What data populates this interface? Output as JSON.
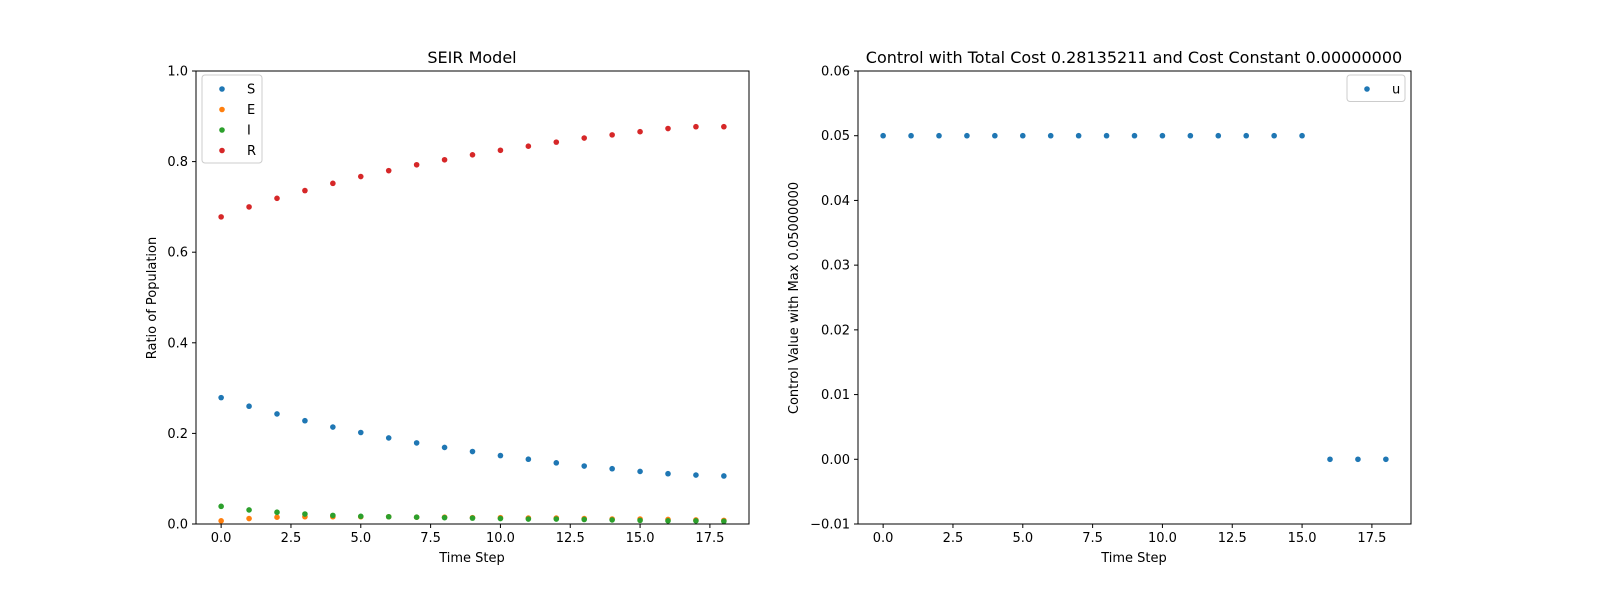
{
  "chart_data": [
    {
      "type": "scatter",
      "title": "SEIR Model",
      "xlabel": "Time Step",
      "ylabel": "Ratio of Population",
      "xlim": [
        -0.9,
        18.9
      ],
      "ylim": [
        0.0,
        1.0
      ],
      "xticks": [
        0.0,
        2.5,
        5.0,
        7.5,
        10.0,
        12.5,
        15.0,
        17.5
      ],
      "xtick_labels": [
        "0.0",
        "2.5",
        "5.0",
        "7.5",
        "10.0",
        "12.5",
        "15.0",
        "17.5"
      ],
      "yticks": [
        0.0,
        0.2,
        0.4,
        0.6,
        0.8,
        1.0
      ],
      "ytick_labels": [
        "0.0",
        "0.2",
        "0.4",
        "0.6",
        "0.8",
        "1.0"
      ],
      "grid": false,
      "legend": "top-left",
      "x": [
        0,
        1,
        2,
        3,
        4,
        5,
        6,
        7,
        8,
        9,
        10,
        11,
        12,
        13,
        14,
        15,
        16,
        17,
        18
      ],
      "series": [
        {
          "name": "S",
          "color": "#1f77b4",
          "values": [
            0.279,
            0.26,
            0.243,
            0.228,
            0.214,
            0.202,
            0.19,
            0.179,
            0.169,
            0.16,
            0.151,
            0.143,
            0.135,
            0.128,
            0.122,
            0.116,
            0.111,
            0.108,
            0.106
          ]
        },
        {
          "name": "E",
          "color": "#ff7f0e",
          "values": [
            0.007,
            0.012,
            0.015,
            0.016,
            0.016,
            0.016,
            0.016,
            0.015,
            0.015,
            0.014,
            0.014,
            0.013,
            0.013,
            0.012,
            0.011,
            0.011,
            0.01,
            0.009,
            0.008
          ]
        },
        {
          "name": "I",
          "color": "#2ca02c",
          "values": [
            0.039,
            0.031,
            0.026,
            0.022,
            0.019,
            0.017,
            0.016,
            0.015,
            0.014,
            0.013,
            0.012,
            0.011,
            0.011,
            0.01,
            0.009,
            0.008,
            0.007,
            0.007,
            0.006
          ]
        },
        {
          "name": "R",
          "color": "#d62728",
          "values": [
            0.678,
            0.7,
            0.719,
            0.736,
            0.752,
            0.767,
            0.78,
            0.793,
            0.804,
            0.815,
            0.825,
            0.834,
            0.843,
            0.852,
            0.859,
            0.866,
            0.873,
            0.877,
            0.877
          ]
        }
      ]
    },
    {
      "type": "scatter",
      "title": "Control with Total Cost 0.28135211 and Cost Constant 0.00000000",
      "xlabel": "Time Step",
      "ylabel": "Control Value with Max 0.05000000",
      "xlim": [
        -0.9,
        18.9
      ],
      "ylim": [
        -0.01,
        0.06
      ],
      "xticks": [
        0.0,
        2.5,
        5.0,
        7.5,
        10.0,
        12.5,
        15.0,
        17.5
      ],
      "xtick_labels": [
        "0.0",
        "2.5",
        "5.0",
        "7.5",
        "10.0",
        "12.5",
        "15.0",
        "17.5"
      ],
      "yticks": [
        -0.01,
        0.0,
        0.01,
        0.02,
        0.03,
        0.04,
        0.05,
        0.06
      ],
      "ytick_labels": [
        "−0.01",
        "0.00",
        "0.01",
        "0.02",
        "0.03",
        "0.04",
        "0.05",
        "0.06"
      ],
      "grid": false,
      "legend": "top-right",
      "x": [
        0,
        1,
        2,
        3,
        4,
        5,
        6,
        7,
        8,
        9,
        10,
        11,
        12,
        13,
        14,
        15,
        16,
        17,
        18
      ],
      "series": [
        {
          "name": "u",
          "color": "#1f77b4",
          "values": [
            0.05,
            0.05,
            0.05,
            0.05,
            0.05,
            0.05,
            0.05,
            0.05,
            0.05,
            0.05,
            0.05,
            0.05,
            0.05,
            0.05,
            0.05,
            0.05,
            0.0,
            0.0,
            0.0
          ]
        }
      ]
    }
  ]
}
